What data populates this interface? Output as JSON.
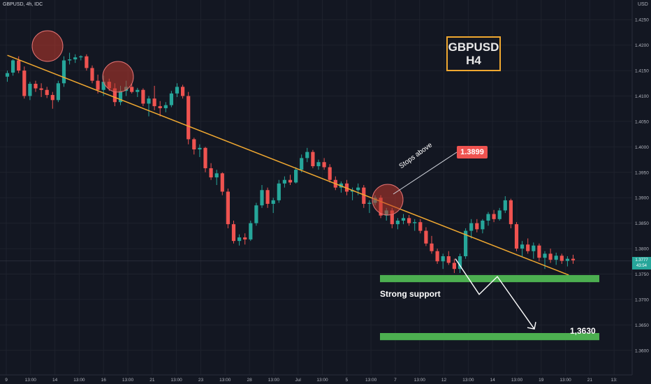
{
  "header": {
    "symbol": "GBPUSD, 4h, IDC",
    "currency": "USD"
  },
  "annotations": {
    "title_line1": "GBPUSD",
    "title_line2": "H4",
    "stops_text": "Stops above",
    "stops_price": "1.3899",
    "support_text": "Strong support",
    "target_text": "1,3630",
    "current_price": "1.3777",
    "countdown": "43:54"
  },
  "colors": {
    "background": "#131722",
    "up": "#26a69a",
    "down": "#ef5350",
    "trendline": "#f0a830",
    "support_zone": "#4caf50",
    "circle": "#c0392b",
    "grid": "#1e222d"
  },
  "chart_data": {
    "type": "candlestick",
    "title": "GBPUSD H4",
    "ylim": [
      1.3575,
      1.4275
    ],
    "y_ticks": [
      "1.4250",
      "1.4200",
      "1.4150",
      "1.4100",
      "1.4050",
      "1.4000",
      "1.3950",
      "1.3900",
      "1.3850",
      "1.3800",
      "1.3750",
      "1.3700",
      "1.3650",
      "1.3600"
    ],
    "x_ticks": [
      "9",
      "13:00",
      "14",
      "13:00",
      "16",
      "13:00",
      "21",
      "13:00",
      "23",
      "13:00",
      "28",
      "13:00",
      "Jul",
      "13:00",
      "5",
      "13:00",
      "7",
      "13:00",
      "12",
      "13:00",
      "14",
      "13:00",
      "19",
      "13:00",
      "21",
      "13:"
    ],
    "trendline": {
      "from": [
        0.5,
        1.418
      ],
      "to": [
        77.5,
        1.3748
      ]
    },
    "support_zone": [
      1.3734,
      1.3748
    ],
    "target_zone": [
      1.362,
      1.3634
    ],
    "projected_path": [
      1.378,
      1.371,
      1.3745,
      1.3642
    ],
    "candles": [
      [
        1.4138,
        1.415,
        1.4128,
        1.4145
      ],
      [
        1.4146,
        1.4172,
        1.414,
        1.417
      ],
      [
        1.417,
        1.4178,
        1.4145,
        1.415
      ],
      [
        1.415,
        1.4158,
        1.4095,
        1.41
      ],
      [
        1.41,
        1.4128,
        1.4092,
        1.4124
      ],
      [
        1.4124,
        1.413,
        1.4108,
        1.4115
      ],
      [
        1.4115,
        1.4125,
        1.4098,
        1.4112
      ],
      [
        1.4112,
        1.4118,
        1.4096,
        1.4102
      ],
      [
        1.4102,
        1.4108,
        1.4075,
        1.4092
      ],
      [
        1.4092,
        1.413,
        1.4088,
        1.4125
      ],
      [
        1.4125,
        1.4178,
        1.4118,
        1.417
      ],
      [
        1.417,
        1.4185,
        1.4162,
        1.4172
      ],
      [
        1.4172,
        1.4182,
        1.4165,
        1.4176
      ],
      [
        1.4176,
        1.418,
        1.417,
        1.4178
      ],
      [
        1.4178,
        1.4182,
        1.415,
        1.4155
      ],
      [
        1.4155,
        1.416,
        1.4125,
        1.413
      ],
      [
        1.413,
        1.4142,
        1.4105,
        1.4112
      ],
      [
        1.4112,
        1.414,
        1.41,
        1.4128
      ],
      [
        1.4128,
        1.4134,
        1.411,
        1.4115
      ],
      [
        1.4115,
        1.4125,
        1.408,
        1.4088
      ],
      [
        1.4088,
        1.412,
        1.4082,
        1.411
      ],
      [
        1.411,
        1.413,
        1.41,
        1.4118
      ],
      [
        1.4118,
        1.4125,
        1.4105,
        1.4108
      ],
      [
        1.4108,
        1.4116,
        1.4098,
        1.4112
      ],
      [
        1.4112,
        1.4115,
        1.408,
        1.4085
      ],
      [
        1.4085,
        1.41,
        1.406,
        1.4095
      ],
      [
        1.4095,
        1.412,
        1.4072,
        1.408
      ],
      [
        1.408,
        1.409,
        1.406,
        1.4076
      ],
      [
        1.4076,
        1.4088,
        1.4068,
        1.4082
      ],
      [
        1.4082,
        1.411,
        1.4078,
        1.4105
      ],
      [
        1.4105,
        1.4125,
        1.4098,
        1.4118
      ],
      [
        1.4118,
        1.4122,
        1.4095,
        1.41
      ],
      [
        1.41,
        1.4108,
        1.4005,
        1.4015
      ],
      [
        1.4015,
        1.4018,
        1.3985,
        1.3995
      ],
      [
        1.3995,
        1.4005,
        1.398,
        1.3998
      ],
      [
        1.3998,
        1.4,
        1.395,
        1.3958
      ],
      [
        1.3958,
        1.3968,
        1.3935,
        1.394
      ],
      [
        1.394,
        1.3955,
        1.3925,
        1.3948
      ],
      [
        1.3948,
        1.395,
        1.3905,
        1.3912
      ],
      [
        1.3912,
        1.3918,
        1.384,
        1.3848
      ],
      [
        1.3848,
        1.3855,
        1.381,
        1.3815
      ],
      [
        1.3815,
        1.3828,
        1.3806,
        1.3822
      ],
      [
        1.3822,
        1.383,
        1.3808,
        1.3818
      ],
      [
        1.3818,
        1.3855,
        1.3815,
        1.385
      ],
      [
        1.385,
        1.389,
        1.3845,
        1.3885
      ],
      [
        1.3885,
        1.3925,
        1.388,
        1.3915
      ],
      [
        1.3915,
        1.392,
        1.388,
        1.3888
      ],
      [
        1.3888,
        1.39,
        1.387,
        1.3895
      ],
      [
        1.3895,
        1.3935,
        1.389,
        1.3928
      ],
      [
        1.3928,
        1.3942,
        1.392,
        1.3935
      ],
      [
        1.3935,
        1.3945,
        1.3925,
        1.393
      ],
      [
        1.393,
        1.396,
        1.3928,
        1.3955
      ],
      [
        1.3955,
        1.3985,
        1.395,
        1.3978
      ],
      [
        1.3978,
        1.3998,
        1.397,
        1.399
      ],
      [
        1.399,
        1.3994,
        1.3958,
        1.3962
      ],
      [
        1.3962,
        1.3975,
        1.3955,
        1.397
      ],
      [
        1.397,
        1.3978,
        1.3955,
        1.396
      ],
      [
        1.396,
        1.3966,
        1.393,
        1.3935
      ],
      [
        1.3935,
        1.3942,
        1.3915,
        1.392
      ],
      [
        1.392,
        1.3932,
        1.391,
        1.3928
      ],
      [
        1.3928,
        1.3935,
        1.3905,
        1.3912
      ],
      [
        1.3912,
        1.392,
        1.3895,
        1.3915
      ],
      [
        1.3915,
        1.3928,
        1.3905,
        1.392
      ],
      [
        1.392,
        1.3925,
        1.388,
        1.3888
      ],
      [
        1.3888,
        1.3895,
        1.387,
        1.389
      ],
      [
        1.389,
        1.3905,
        1.3885,
        1.39
      ],
      [
        1.39,
        1.3905,
        1.386,
        1.3865
      ],
      [
        1.3865,
        1.388,
        1.3855,
        1.3875
      ],
      [
        1.3875,
        1.388,
        1.384,
        1.3848
      ],
      [
        1.3848,
        1.386,
        1.3838,
        1.3855
      ],
      [
        1.3855,
        1.3868,
        1.3848,
        1.386
      ],
      [
        1.386,
        1.3866,
        1.3845,
        1.385
      ],
      [
        1.385,
        1.3858,
        1.3835,
        1.3852
      ],
      [
        1.3852,
        1.3858,
        1.383,
        1.3835
      ],
      [
        1.3835,
        1.3842,
        1.3805,
        1.381
      ],
      [
        1.381,
        1.3825,
        1.379,
        1.3795
      ],
      [
        1.3795,
        1.38,
        1.377,
        1.3775
      ],
      [
        1.3775,
        1.379,
        1.376,
        1.3785
      ],
      [
        1.3785,
        1.3795,
        1.3768,
        1.3772
      ],
      [
        1.3772,
        1.378,
        1.3752,
        1.376
      ],
      [
        1.376,
        1.379,
        1.3752,
        1.3785
      ],
      [
        1.3785,
        1.384,
        1.378,
        1.3835
      ],
      [
        1.3835,
        1.3858,
        1.382,
        1.385
      ],
      [
        1.385,
        1.3858,
        1.3832,
        1.3838
      ],
      [
        1.3838,
        1.3858,
        1.383,
        1.3855
      ],
      [
        1.3855,
        1.3872,
        1.3845,
        1.3868
      ],
      [
        1.3868,
        1.3876,
        1.3852,
        1.3858
      ],
      [
        1.3858,
        1.388,
        1.3855,
        1.3875
      ],
      [
        1.3875,
        1.3903,
        1.387,
        1.3895
      ],
      [
        1.3895,
        1.3898,
        1.384,
        1.3848
      ],
      [
        1.3848,
        1.3852,
        1.3795,
        1.38
      ],
      [
        1.38,
        1.3815,
        1.3785,
        1.3808
      ],
      [
        1.3808,
        1.382,
        1.379,
        1.3795
      ],
      [
        1.3795,
        1.3812,
        1.378,
        1.3806
      ],
      [
        1.3806,
        1.381,
        1.3775,
        1.3782
      ],
      [
        1.3782,
        1.3795,
        1.376,
        1.379
      ],
      [
        1.379,
        1.38,
        1.3772,
        1.3778
      ],
      [
        1.3778,
        1.3792,
        1.3768,
        1.3786
      ],
      [
        1.3786,
        1.379,
        1.377,
        1.3776
      ],
      [
        1.3776,
        1.3785,
        1.3765,
        1.378
      ],
      [
        1.378,
        1.3788,
        1.377,
        1.3777
      ]
    ]
  }
}
